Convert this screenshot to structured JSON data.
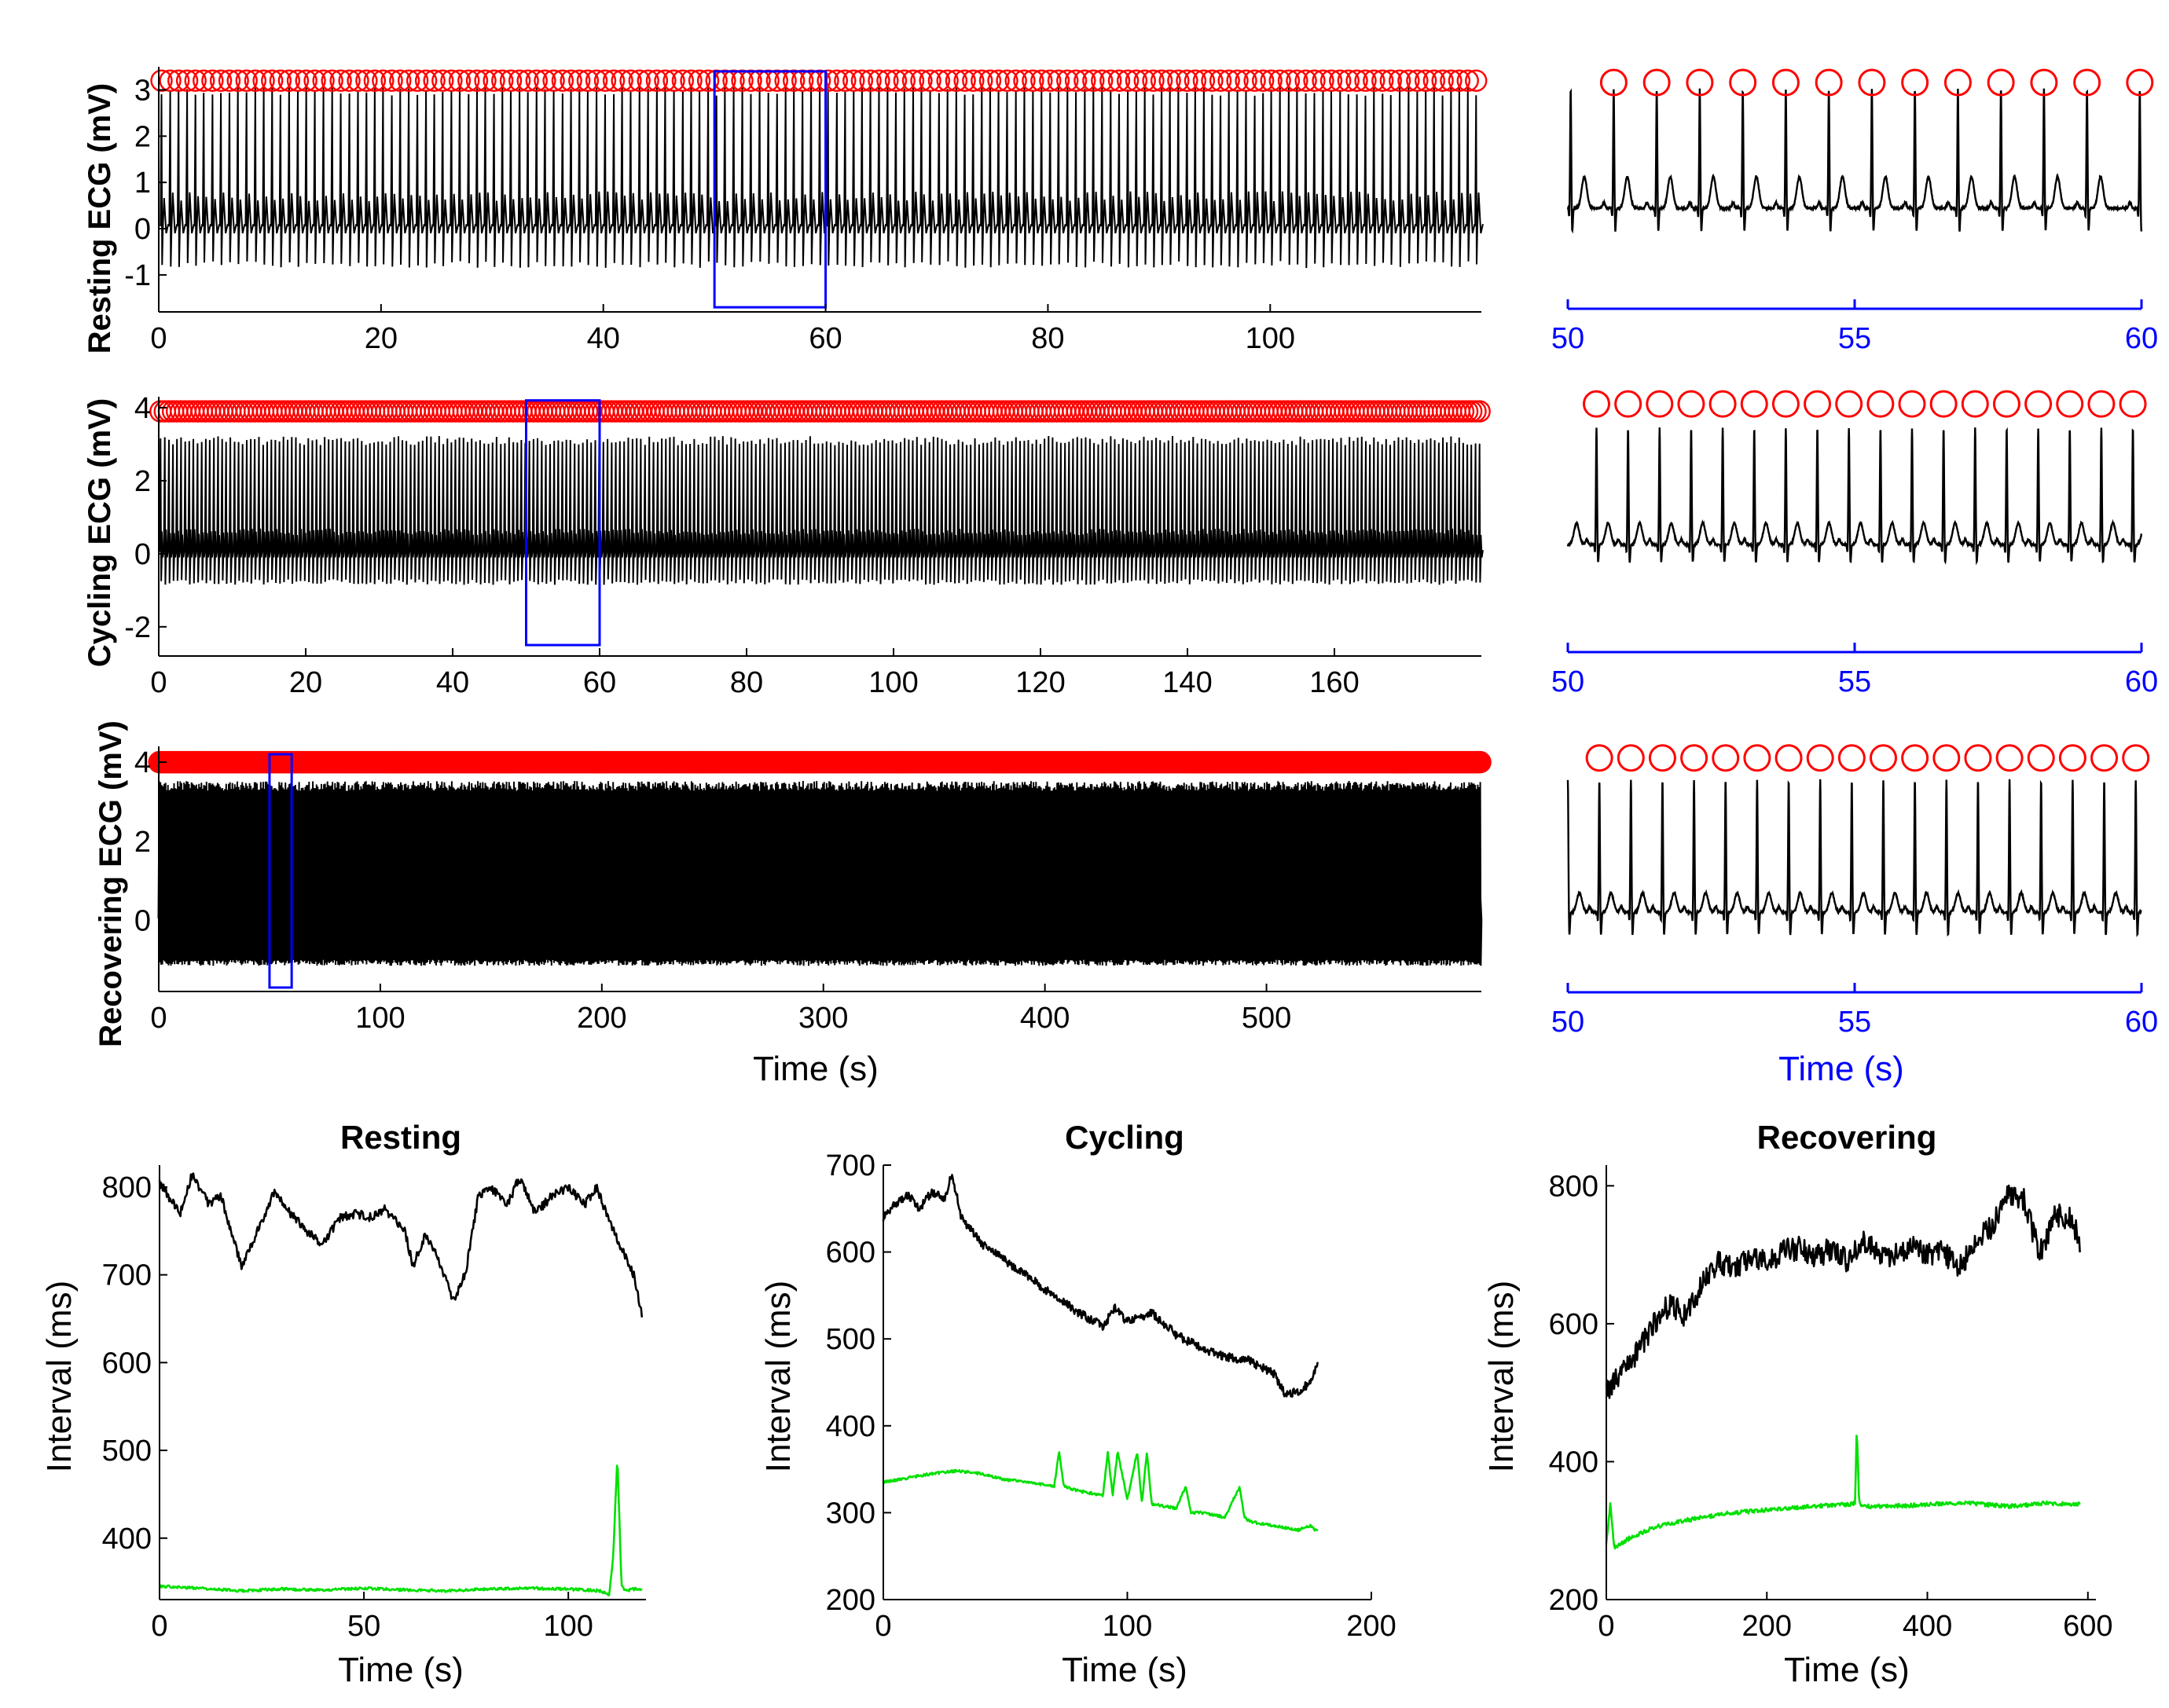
{
  "figure": {
    "x_time_label": "Time (s)",
    "colors": {
      "ecg": "#000000",
      "peak_marker": "#ff0000",
      "zoom_box": "#0000ff",
      "rr_interval": "#000000",
      "qt_interval": "#00e000",
      "zoom_axis": "#0000ff"
    }
  },
  "chart_data": [
    {
      "id": "resting-ecg",
      "type": "line",
      "title": "",
      "ylabel": "Resting ECG (mV)",
      "xlabel": "",
      "xlim": [
        0,
        119
      ],
      "ylim": [
        -1.8,
        3.5
      ],
      "xticks": [
        0,
        20,
        40,
        60,
        80,
        100
      ],
      "yticks": [
        -1,
        0,
        1,
        2,
        3
      ],
      "series": [
        {
          "name": "ECG",
          "rr_ms": 770,
          "r_peak": 3.0,
          "t_wave": 0.7,
          "s_min": -0.7,
          "duration_s": 119
        },
        {
          "name": "R peaks",
          "marker": "circle",
          "y": 3.2
        }
      ],
      "zoom_box": {
        "x": [
          50,
          60
        ],
        "y": [
          -1.7,
          3.4
        ]
      }
    },
    {
      "id": "cycling-ecg",
      "type": "line",
      "title": "",
      "ylabel": "Cycling ECG (mV)",
      "xlabel": "",
      "xlim": [
        0,
        180
      ],
      "ylim": [
        -2.8,
        4.3
      ],
      "xticks": [
        0,
        20,
        40,
        60,
        80,
        100,
        120,
        140,
        160
      ],
      "yticks": [
        -2,
        0,
        2,
        4
      ],
      "series": [
        {
          "name": "ECG",
          "rr_ms": 560,
          "r_peak": 3.1,
          "t_wave": 0.6,
          "s_min": -0.7,
          "duration_s": 180
        },
        {
          "name": "R peaks",
          "marker": "circle",
          "y": 3.9
        }
      ],
      "zoom_box": {
        "x": [
          50,
          60
        ],
        "y": [
          -2.5,
          4.2
        ]
      }
    },
    {
      "id": "recovering-ecg",
      "type": "line",
      "title": "",
      "ylabel": "Recovering ECG (mV)",
      "xlabel": "Time (s)",
      "xlim": [
        0,
        597
      ],
      "ylim": [
        -1.8,
        4.4
      ],
      "xticks": [
        0,
        100,
        200,
        300,
        400,
        500
      ],
      "yticks": [
        0,
        2,
        4
      ],
      "series": [
        {
          "name": "ECG",
          "rr_ms": 560,
          "r_peak": 3.4,
          "t_wave": 0.5,
          "s_min": -1.0,
          "duration_s": 597
        },
        {
          "name": "R peaks",
          "marker": "circle",
          "y": 4.0
        }
      ],
      "zoom_box": {
        "x": [
          50,
          60
        ],
        "y": [
          -1.7,
          4.2
        ]
      }
    },
    {
      "id": "resting-zoom",
      "type": "line",
      "title": "",
      "xlabel": "",
      "xlim": [
        50,
        60
      ],
      "ylim": [
        -1.3,
        3.6
      ],
      "xticks": [
        50,
        55,
        60
      ],
      "series": [
        {
          "name": "ECG",
          "beats": [
            50.8,
            51.55,
            52.3,
            53.05,
            53.8,
            54.55,
            55.3,
            56.05,
            56.8,
            57.55,
            58.3,
            59.05,
            59.97
          ],
          "r_peak": 3.0,
          "t_wave": 0.8,
          "s_min": -0.6
        },
        {
          "name": "R peaks",
          "marker": "circle",
          "y": 3.2
        }
      ]
    },
    {
      "id": "cycling-zoom",
      "type": "line",
      "title": "",
      "xlabel": "",
      "xlim": [
        50,
        60
      ],
      "ylim": [
        -1.3,
        4.1
      ],
      "xticks": [
        50,
        55,
        60
      ],
      "series": [
        {
          "name": "ECG",
          "beats": [
            50.5,
            51.05,
            51.6,
            52.15,
            52.7,
            53.25,
            53.8,
            54.35,
            54.9,
            55.45,
            56.0,
            56.55,
            57.1,
            57.65,
            58.2,
            58.75,
            59.3,
            59.85
          ],
          "r_peak": 3.2,
          "t_wave": 0.6,
          "s_min": -0.5
        },
        {
          "name": "R peaks",
          "marker": "circle",
          "y": 3.9
        }
      ]
    },
    {
      "id": "recovering-zoom",
      "type": "line",
      "title": "",
      "xlabel": "Time (s)",
      "xlim": [
        50,
        60
      ],
      "ylim": [
        -1.4,
        4.3
      ],
      "xticks": [
        50,
        55,
        60
      ],
      "series": [
        {
          "name": "ECG",
          "beats": [
            50.55,
            51.1,
            51.65,
            52.2,
            52.75,
            53.3,
            53.85,
            54.4,
            54.95,
            55.5,
            56.05,
            56.6,
            57.15,
            57.7,
            58.25,
            58.8,
            59.35,
            59.9
          ],
          "r_peak": 3.4,
          "t_wave": 0.5,
          "s_min": -0.6
        },
        {
          "name": "R peaks",
          "marker": "circle",
          "y": 4.0
        }
      ]
    },
    {
      "id": "resting-intervals",
      "type": "line",
      "title": "Resting",
      "xlabel": "Time (s)",
      "ylabel": "Interval (ms)",
      "xlim": [
        0,
        119
      ],
      "ylim": [
        330,
        825
      ],
      "xticks": [
        0,
        50,
        100
      ],
      "yticks": [
        400,
        500,
        600,
        700,
        800
      ],
      "series": [
        {
          "name": "RR interval",
          "x": [
            0,
            5,
            8,
            12,
            15,
            20,
            25,
            28,
            32,
            36,
            40,
            44,
            48,
            52,
            55,
            60,
            62,
            65,
            68,
            72,
            75,
            78,
            81,
            85,
            88,
            92,
            96,
            100,
            104,
            107,
            110,
            113,
            116,
            118
          ],
          "y": [
            805,
            770,
            815,
            780,
            790,
            710,
            760,
            795,
            770,
            750,
            735,
            765,
            770,
            765,
            775,
            750,
            710,
            745,
            720,
            670,
            705,
            790,
            800,
            780,
            810,
            770,
            790,
            800,
            780,
            800,
            760,
            730,
            700,
            655
          ]
        },
        {
          "name": "QT interval",
          "x": [
            0,
            10,
            20,
            30,
            40,
            50,
            60,
            70,
            80,
            90,
            100,
            108,
            110,
            111,
            112,
            113,
            114,
            116,
            118
          ],
          "y": [
            345,
            343,
            340,
            342,
            341,
            343,
            341,
            340,
            342,
            343,
            342,
            340,
            335,
            380,
            495,
            345,
            340,
            342,
            342
          ]
        }
      ]
    },
    {
      "id": "cycling-intervals",
      "type": "line",
      "title": "Cycling",
      "xlabel": "Time (s)",
      "ylabel": "Interval (ms)",
      "xlim": [
        0,
        200
      ],
      "ylim": [
        200,
        700
      ],
      "xticks": [
        0,
        100,
        200
      ],
      "yticks": [
        200,
        300,
        400,
        500,
        600,
        700
      ],
      "series": [
        {
          "name": "RR interval",
          "x": [
            0,
            5,
            10,
            15,
            20,
            25,
            28,
            32,
            40,
            50,
            60,
            70,
            80,
            90,
            95,
            100,
            105,
            110,
            120,
            130,
            140,
            150,
            160,
            165,
            170,
            175,
            178
          ],
          "y": [
            640,
            655,
            665,
            650,
            670,
            660,
            690,
            640,
            610,
            590,
            570,
            550,
            530,
            515,
            535,
            520,
            525,
            530,
            505,
            490,
            480,
            475,
            460,
            435,
            440,
            450,
            470
          ]
        },
        {
          "name": "QT interval",
          "x": [
            0,
            10,
            20,
            30,
            40,
            50,
            60,
            70,
            72,
            74,
            80,
            90,
            92,
            94,
            96,
            100,
            104,
            106,
            108,
            110,
            120,
            124,
            126,
            130,
            140,
            146,
            148,
            150,
            160,
            170,
            175,
            178
          ],
          "y": [
            335,
            340,
            345,
            348,
            345,
            338,
            335,
            330,
            370,
            330,
            325,
            320,
            370,
            320,
            370,
            315,
            370,
            310,
            370,
            310,
            305,
            330,
            300,
            300,
            295,
            330,
            295,
            290,
            285,
            280,
            285,
            278
          ]
        }
      ]
    },
    {
      "id": "recovering-intervals",
      "type": "line",
      "title": "Recovering",
      "xlabel": "Time (s)",
      "ylabel": "Interval (ms)",
      "xlim": [
        0,
        610
      ],
      "ylim": [
        200,
        830
      ],
      "xticks": [
        0,
        200,
        400,
        600
      ],
      "yticks": [
        200,
        400,
        600,
        800
      ],
      "series": [
        {
          "name": "RR interval",
          "x": [
            0,
            20,
            40,
            60,
            80,
            100,
            120,
            140,
            160,
            180,
            200,
            220,
            240,
            260,
            280,
            300,
            320,
            340,
            360,
            380,
            400,
            420,
            440,
            460,
            480,
            500,
            520,
            540,
            560,
            580,
            590
          ],
          "y": [
            500,
            530,
            560,
            600,
            630,
            610,
            660,
            690,
            680,
            700,
            690,
            705,
            710,
            695,
            710,
            690,
            720,
            700,
            700,
            715,
            700,
            705,
            680,
            720,
            740,
            790,
            780,
            700,
            760,
            750,
            720
          ]
        },
        {
          "name": "QT interval",
          "x": [
            0,
            5,
            10,
            30,
            60,
            100,
            150,
            200,
            250,
            300,
            310,
            312,
            315,
            320,
            350,
            400,
            450,
            500,
            550,
            590
          ],
          "y": [
            280,
            340,
            275,
            290,
            305,
            315,
            325,
            330,
            335,
            338,
            340,
            455,
            340,
            335,
            335,
            338,
            340,
            335,
            340,
            338
          ]
        }
      ]
    }
  ]
}
